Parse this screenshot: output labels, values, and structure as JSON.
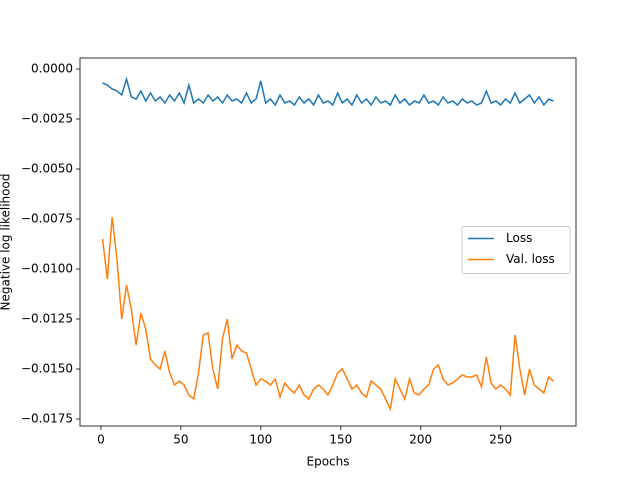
{
  "chart_data": {
    "type": "line",
    "xlabel": "Epochs",
    "ylabel": "Negative log likelihood",
    "x": [
      1,
      4,
      7,
      10,
      13,
      16,
      19,
      22,
      25,
      28,
      31,
      34,
      37,
      40,
      43,
      46,
      49,
      52,
      55,
      58,
      61,
      64,
      67,
      70,
      73,
      76,
      79,
      82,
      85,
      88,
      91,
      94,
      97,
      100,
      103,
      106,
      109,
      112,
      115,
      118,
      121,
      124,
      127,
      130,
      133,
      136,
      139,
      142,
      145,
      148,
      151,
      154,
      157,
      160,
      163,
      166,
      169,
      172,
      175,
      178,
      181,
      184,
      187,
      190,
      193,
      196,
      199,
      202,
      205,
      208,
      211,
      214,
      217,
      220,
      223,
      226,
      229,
      232,
      235,
      238,
      241,
      244,
      247,
      250,
      253,
      256,
      259,
      262,
      265,
      268,
      271,
      274,
      277,
      280,
      283
    ],
    "series": [
      {
        "name": "Loss",
        "color": "#1f77b4",
        "values": [
          -0.0007,
          -0.0008,
          -0.001,
          -0.0011,
          -0.0013,
          -0.0005,
          -0.0014,
          -0.0015,
          -0.0011,
          -0.0016,
          -0.0012,
          -0.0016,
          -0.0014,
          -0.0017,
          -0.0013,
          -0.0016,
          -0.0012,
          -0.0017,
          -0.0008,
          -0.0017,
          -0.0015,
          -0.0017,
          -0.0013,
          -0.0016,
          -0.0014,
          -0.0017,
          -0.0013,
          -0.0016,
          -0.0015,
          -0.0017,
          -0.0012,
          -0.0017,
          -0.0015,
          -0.0006,
          -0.0017,
          -0.0015,
          -0.0018,
          -0.0013,
          -0.0017,
          -0.0016,
          -0.0018,
          -0.0014,
          -0.0017,
          -0.0015,
          -0.0018,
          -0.0013,
          -0.0017,
          -0.0016,
          -0.0018,
          -0.0012,
          -0.0017,
          -0.0015,
          -0.0018,
          -0.0013,
          -0.0017,
          -0.0015,
          -0.0018,
          -0.0014,
          -0.0017,
          -0.0016,
          -0.0018,
          -0.0013,
          -0.0017,
          -0.0015,
          -0.0018,
          -0.0016,
          -0.0017,
          -0.0013,
          -0.0017,
          -0.0016,
          -0.0018,
          -0.0014,
          -0.0017,
          -0.0016,
          -0.0018,
          -0.0015,
          -0.0017,
          -0.0016,
          -0.0018,
          -0.0017,
          -0.0011,
          -0.0017,
          -0.0016,
          -0.0018,
          -0.0015,
          -0.0017,
          -0.0012,
          -0.0017,
          -0.0015,
          -0.0013,
          -0.0017,
          -0.0014,
          -0.0018,
          -0.0015,
          -0.0016
        ]
      },
      {
        "name": "Val. loss",
        "color": "#ff7f0e",
        "values": [
          -0.0085,
          -0.0105,
          -0.0074,
          -0.0095,
          -0.0125,
          -0.0108,
          -0.012,
          -0.0138,
          -0.0122,
          -0.013,
          -0.0145,
          -0.0148,
          -0.015,
          -0.0141,
          -0.0152,
          -0.0158,
          -0.0156,
          -0.0158,
          -0.0163,
          -0.0165,
          -0.0152,
          -0.0133,
          -0.0132,
          -0.015,
          -0.016,
          -0.0135,
          -0.0125,
          -0.0145,
          -0.0138,
          -0.0141,
          -0.0142,
          -0.015,
          -0.0158,
          -0.0155,
          -0.0156,
          -0.0158,
          -0.0155,
          -0.0164,
          -0.0157,
          -0.016,
          -0.0162,
          -0.0158,
          -0.0163,
          -0.0165,
          -0.016,
          -0.0158,
          -0.016,
          -0.0163,
          -0.0158,
          -0.0152,
          -0.015,
          -0.0155,
          -0.016,
          -0.0158,
          -0.0162,
          -0.0164,
          -0.0156,
          -0.0158,
          -0.016,
          -0.0165,
          -0.017,
          -0.0155,
          -0.016,
          -0.0165,
          -0.0155,
          -0.0162,
          -0.0163,
          -0.016,
          -0.0158,
          -0.015,
          -0.0148,
          -0.0155,
          -0.0158,
          -0.0157,
          -0.0155,
          -0.0153,
          -0.0154,
          -0.0154,
          -0.0153,
          -0.0159,
          -0.0144,
          -0.0157,
          -0.016,
          -0.0158,
          -0.016,
          -0.0163,
          -0.0133,
          -0.015,
          -0.0163,
          -0.015,
          -0.0158,
          -0.016,
          -0.0162,
          -0.0154,
          -0.0156
        ]
      }
    ],
    "xlim": [
      -13.1,
      297.1
    ],
    "xticks": [
      0,
      50,
      100,
      150,
      200,
      250
    ],
    "ylim": [
      -0.01785,
      0.00055
    ],
    "yticks": [
      {
        "value": 0,
        "label": "0.0000"
      },
      {
        "value": -0.0025,
        "label": "−0.0025"
      },
      {
        "value": -0.005,
        "label": "−0.0050"
      },
      {
        "value": -0.0075,
        "label": "−0.0075"
      },
      {
        "value": -0.01,
        "label": "−0.0100"
      },
      {
        "value": -0.0125,
        "label": "−0.0125"
      },
      {
        "value": -0.015,
        "label": "−0.0150"
      },
      {
        "value": -0.0175,
        "label": "−0.0175"
      }
    ],
    "legend": "center right"
  }
}
